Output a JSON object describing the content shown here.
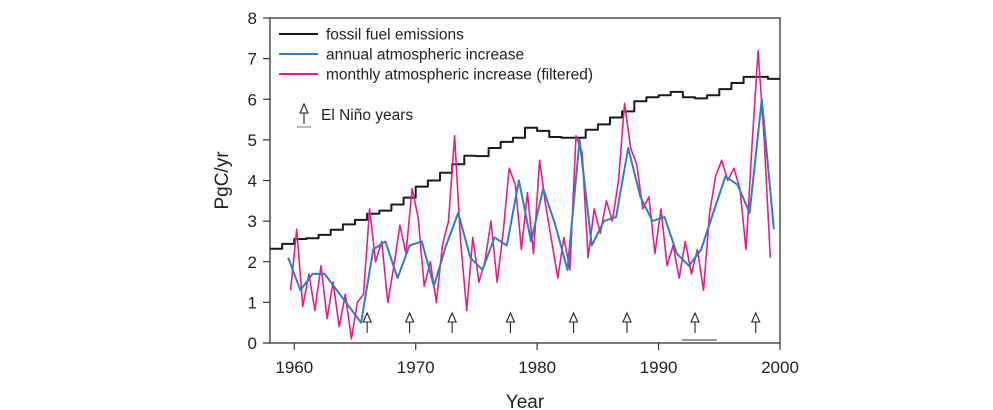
{
  "chart_data": {
    "type": "line",
    "title": "",
    "xlabel": "Year",
    "ylabel": "PgC/yr",
    "xlim": [
      1958,
      2000
    ],
    "ylim": [
      0,
      8
    ],
    "xticks": [
      1960,
      1970,
      1980,
      1990,
      2000
    ],
    "yticks": [
      0,
      1,
      2,
      3,
      4,
      5,
      6,
      7,
      8
    ],
    "grid": false,
    "legend_position": "top-left",
    "legend": [
      {
        "label": "fossil fuel emissions",
        "color": "#1a1a1a"
      },
      {
        "label": "annual atmospheric increase",
        "color": "#3a78c2"
      },
      {
        "label": "monthly atmospheric increase (filtered)",
        "color": "#e0208a"
      },
      {
        "label": "El Niño years",
        "marker": "up-arrow"
      }
    ],
    "series": [
      {
        "name": "fossil fuel emissions",
        "style": "step",
        "color": "#1a1a1a",
        "x": [
          1958,
          1959,
          1960,
          1961,
          1962,
          1963,
          1964,
          1965,
          1966,
          1967,
          1968,
          1969,
          1970,
          1971,
          1972,
          1973,
          1974,
          1975,
          1976,
          1977,
          1978,
          1979,
          1980,
          1981,
          1982,
          1983,
          1984,
          1985,
          1986,
          1987,
          1988,
          1989,
          1990,
          1991,
          1992,
          1993,
          1994,
          1995,
          1996,
          1997,
          1998,
          1999
        ],
        "values": [
          2.32,
          2.44,
          2.56,
          2.58,
          2.66,
          2.79,
          2.92,
          3.03,
          3.18,
          3.26,
          3.41,
          3.58,
          3.85,
          4.0,
          4.19,
          4.4,
          4.61,
          4.6,
          4.8,
          4.95,
          5.05,
          5.3,
          5.22,
          5.07,
          5.05,
          5.05,
          5.25,
          5.38,
          5.55,
          5.7,
          5.95,
          6.05,
          6.1,
          6.18,
          6.05,
          6.02,
          6.1,
          6.25,
          6.4,
          6.55,
          6.55,
          6.5
        ]
      },
      {
        "name": "annual atmospheric increase",
        "color": "#3a78c2",
        "x": [
          1959.5,
          1960.5,
          1961.5,
          1962.5,
          1963.5,
          1964.5,
          1965.5,
          1966.5,
          1967.5,
          1968.5,
          1969.5,
          1970.5,
          1971.5,
          1972.5,
          1973.5,
          1974.5,
          1975.5,
          1976.5,
          1977.5,
          1978.5,
          1979.5,
          1980.5,
          1981.5,
          1982.5,
          1983.5,
          1984.5,
          1985.5,
          1986.5,
          1987.5,
          1988.5,
          1989.5,
          1990.5,
          1991.5,
          1992.5,
          1993.5,
          1994.5,
          1995.5,
          1996.5,
          1997.5,
          1998.5,
          1999.5
        ],
        "values": [
          2.1,
          1.3,
          1.7,
          1.7,
          1.3,
          0.9,
          0.5,
          2.3,
          2.5,
          1.6,
          2.4,
          2.5,
          1.4,
          2.4,
          3.2,
          2.1,
          1.8,
          2.6,
          2.4,
          4.0,
          2.5,
          3.8,
          2.9,
          1.8,
          5.0,
          2.4,
          3.0,
          3.1,
          4.8,
          3.6,
          3.0,
          3.1,
          2.2,
          1.9,
          2.3,
          3.2,
          4.1,
          3.9,
          3.2,
          6.0,
          2.8
        ]
      },
      {
        "name": "monthly atmospheric increase (filtered)",
        "color": "#e0208a",
        "x": [
          1959.7,
          1960.2,
          1960.7,
          1961.2,
          1961.7,
          1962.2,
          1962.7,
          1963.2,
          1963.7,
          1964.2,
          1964.7,
          1965.2,
          1965.7,
          1966.2,
          1966.7,
          1967.2,
          1967.7,
          1968.2,
          1968.7,
          1969.2,
          1969.7,
          1970.2,
          1970.7,
          1971.2,
          1971.7,
          1972.2,
          1972.7,
          1973.2,
          1973.7,
          1974.2,
          1974.7,
          1975.2,
          1975.7,
          1976.2,
          1976.7,
          1977.2,
          1977.7,
          1978.2,
          1978.7,
          1979.2,
          1979.7,
          1980.2,
          1980.7,
          1981.2,
          1981.7,
          1982.2,
          1982.7,
          1983.2,
          1983.7,
          1984.2,
          1984.7,
          1985.2,
          1985.7,
          1986.2,
          1986.7,
          1987.2,
          1987.7,
          1988.2,
          1988.7,
          1989.2,
          1989.7,
          1990.2,
          1990.7,
          1991.2,
          1991.7,
          1992.2,
          1992.7,
          1993.2,
          1993.7,
          1994.2,
          1994.7,
          1995.2,
          1995.7,
          1996.2,
          1996.7,
          1997.2,
          1997.7,
          1998.2,
          1998.7,
          1999.2
        ],
        "values": [
          1.3,
          2.8,
          0.9,
          1.7,
          0.8,
          1.9,
          0.6,
          1.5,
          0.4,
          1.2,
          0.1,
          1.0,
          1.2,
          3.3,
          2.0,
          2.5,
          1.0,
          1.9,
          2.9,
          2.2,
          3.8,
          3.1,
          1.4,
          2.0,
          1.0,
          2.4,
          3.0,
          5.1,
          2.5,
          0.8,
          2.6,
          1.5,
          2.0,
          3.0,
          1.5,
          2.7,
          4.3,
          3.9,
          2.3,
          3.7,
          2.2,
          4.5,
          3.4,
          2.5,
          1.6,
          2.6,
          1.8,
          5.1,
          4.7,
          2.1,
          3.3,
          2.7,
          3.5,
          3.0,
          4.0,
          5.9,
          4.8,
          4.4,
          3.3,
          3.6,
          2.2,
          3.3,
          1.9,
          2.4,
          1.6,
          2.5,
          1.7,
          2.3,
          1.3,
          3.2,
          4.1,
          4.5,
          4.0,
          4.3,
          3.8,
          2.3,
          4.9,
          7.2,
          5.0,
          2.1
        ]
      }
    ],
    "annotations": {
      "el_nino_years": [
        1966,
        1969.5,
        1973,
        1977.8,
        1983,
        1987.4,
        1993,
        1998
      ]
    }
  }
}
